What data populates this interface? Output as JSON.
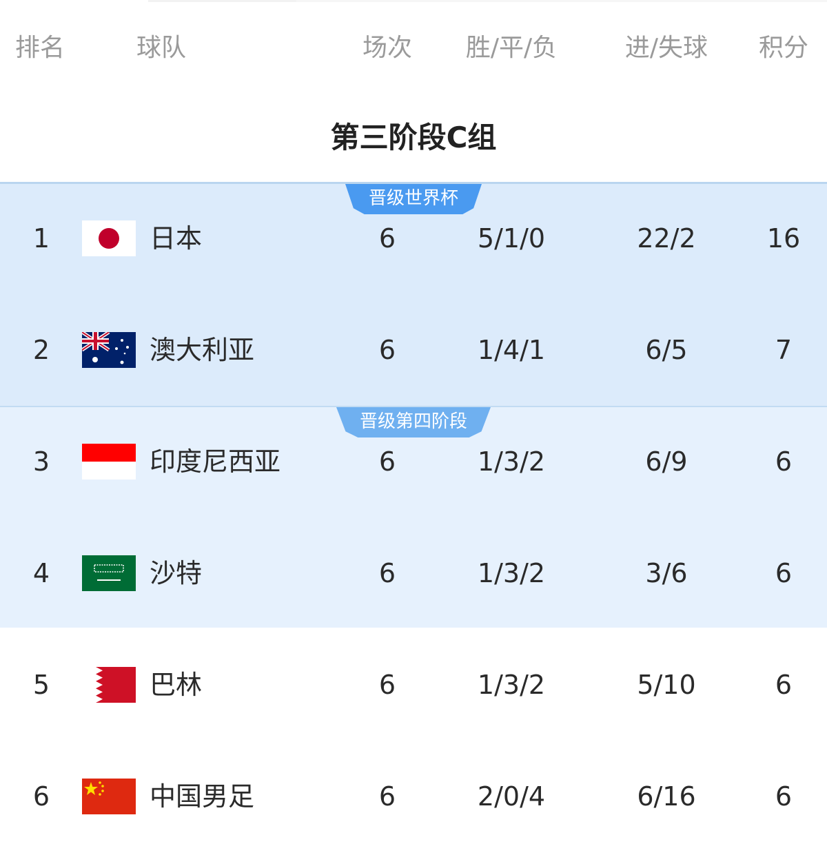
{
  "header": {
    "rank": "排名",
    "team": "球队",
    "played": "场次",
    "wdl": "胜/平/负",
    "goals": "进/失球",
    "points": "积分"
  },
  "group_title": "第三阶段C组",
  "zones": [
    {
      "label": "晋级世界杯",
      "color": "#4a9af0"
    },
    {
      "label": "晋级第四阶段",
      "color": "#6fb0f0"
    }
  ],
  "rows": [
    {
      "rank": "1",
      "team": "日本",
      "flag": "japan-flag",
      "played": "6",
      "wdl": "5/1/0",
      "goals": "22/2",
      "points": "16"
    },
    {
      "rank": "2",
      "team": "澳大利亚",
      "flag": "australia-flag",
      "played": "6",
      "wdl": "1/4/1",
      "goals": "6/5",
      "points": "7"
    },
    {
      "rank": "3",
      "team": "印度尼西亚",
      "flag": "indonesia-flag",
      "played": "6",
      "wdl": "1/3/2",
      "goals": "6/9",
      "points": "6"
    },
    {
      "rank": "4",
      "team": "沙特",
      "flag": "saudi-arabia-flag",
      "played": "6",
      "wdl": "1/3/2",
      "goals": "3/6",
      "points": "6"
    },
    {
      "rank": "5",
      "team": "巴林",
      "flag": "bahrain-flag",
      "played": "6",
      "wdl": "1/3/2",
      "goals": "5/10",
      "points": "6"
    },
    {
      "rank": "6",
      "team": "中国男足",
      "flag": "china-flag",
      "played": "6",
      "wdl": "2/0/4",
      "goals": "6/16",
      "points": "6"
    }
  ]
}
